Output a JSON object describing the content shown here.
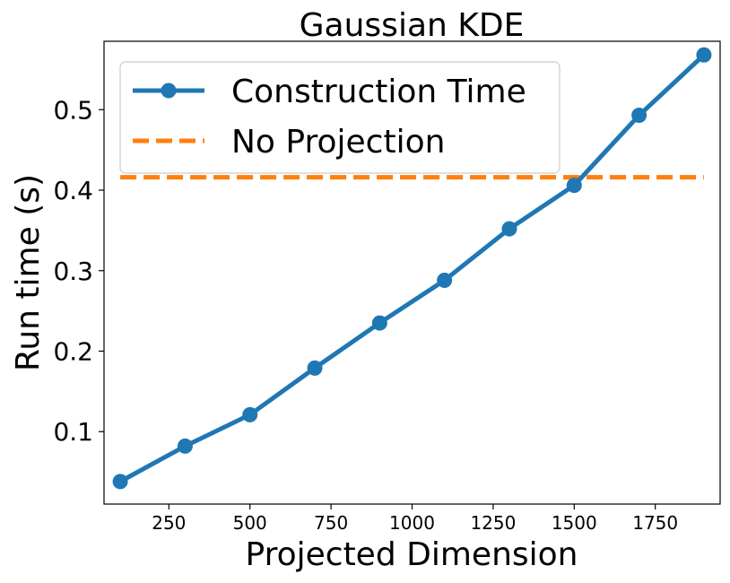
{
  "chart_data": {
    "type": "line",
    "title": "Gaussian KDE",
    "xlabel": "Projected Dimension",
    "ylabel": "Run time (s)",
    "xlim": [
      50,
      1950
    ],
    "ylim": [
      0.01,
      0.585
    ],
    "x_ticks": [
      250,
      500,
      750,
      1000,
      1250,
      1500,
      1750
    ],
    "x_tick_labels": [
      "250",
      "500",
      "750",
      "1000",
      "1250",
      "1500",
      "1750"
    ],
    "y_ticks": [
      0.1,
      0.2,
      0.3,
      0.4,
      0.5
    ],
    "y_tick_labels": [
      "0.1",
      "0.2",
      "0.3",
      "0.4",
      "0.5"
    ],
    "grid": false,
    "legend_position": "top-left",
    "series": [
      {
        "name": "Construction Time",
        "style": "solid-line-with-circle-markers",
        "color": "#1f77b4",
        "x": [
          100,
          300,
          500,
          700,
          900,
          1100,
          1300,
          1500,
          1700,
          1900
        ],
        "y": [
          0.038,
          0.082,
          0.121,
          0.179,
          0.235,
          0.288,
          0.352,
          0.406,
          0.493,
          0.568
        ]
      },
      {
        "name": "No Projection",
        "style": "dashed-line",
        "color": "#ff7f0e",
        "x": [
          100,
          1900
        ],
        "y": [
          0.416,
          0.416
        ]
      }
    ]
  }
}
